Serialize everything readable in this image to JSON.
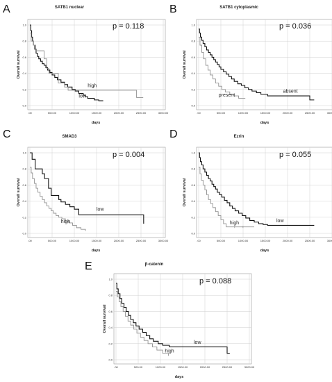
{
  "figure": {
    "panels": [
      {
        "letter": "A",
        "title": "SATB1 nuclear",
        "p_text": "p = 0.118",
        "chart_data": {
          "type": "line",
          "title": "SATB1 nuclear",
          "xlabel": "days",
          "ylabel": "Overall survival",
          "xlim": [
            0,
            3000
          ],
          "ylim": [
            0,
            1.0
          ],
          "xticks": [
            ".00",
            "500.00",
            "1000.00",
            "1500.00",
            "2000.00",
            "2500.00",
            "3000.00"
          ],
          "yticks": [
            "0.0",
            "0.2",
            "0.4",
            "0.6",
            "0.8",
            "1.0"
          ],
          "grid": true,
          "series": [
            {
              "name": "low",
              "color": "#111111",
              "x": [
                0,
                20,
                40,
                60,
                80,
                110,
                140,
                170,
                200,
                240,
                280,
                320,
                360,
                400,
                450,
                500,
                560,
                620,
                700,
                780,
                850,
                950,
                1020,
                1100,
                1200,
                1250,
                1300,
                1400,
                1450,
                1500,
                1550,
                1650
              ],
              "y": [
                1.0,
                0.93,
                0.85,
                0.8,
                0.75,
                0.7,
                0.65,
                0.61,
                0.58,
                0.55,
                0.52,
                0.5,
                0.47,
                0.44,
                0.41,
                0.38,
                0.35,
                0.32,
                0.29,
                0.26,
                0.23,
                0.2,
                0.18,
                0.15,
                0.13,
                0.11,
                0.09,
                0.09,
                0.07,
                0.07,
                0.06,
                0.06
              ]
            },
            {
              "name": "high",
              "color": "#909090",
              "x": [
                0,
                30,
                80,
                130,
                210,
                320,
                380,
                430,
                560,
                640,
                720,
                780,
                860,
                1000,
                2100,
                2400,
                2550
              ],
              "y": [
                0.9,
                0.8,
                0.75,
                0.68,
                0.68,
                0.58,
                0.46,
                0.4,
                0.4,
                0.28,
                0.28,
                0.23,
                0.19,
                0.19,
                0.19,
                0.1,
                0.1
              ]
            }
          ],
          "annotations": [
            {
              "text": "high",
              "x": 1300,
              "y": 0.23
            },
            {
              "text": "low",
              "x": 1100,
              "y": 0.1
            }
          ]
        }
      },
      {
        "letter": "B",
        "title": "SATB1 cytoplasmic",
        "p_text": "p = 0.036",
        "chart_data": {
          "type": "line",
          "title": "SATB1 cytoplasmic",
          "xlabel": "days",
          "ylabel": "Overall survival",
          "xlim": [
            0,
            3000
          ],
          "ylim": [
            0,
            1.0
          ],
          "xticks": [
            ".00",
            "500.00",
            "1000.00",
            "1500.00",
            "2000.00",
            "2500.00",
            "3000.00"
          ],
          "yticks": [
            "0.0",
            "0.2",
            "0.4",
            "0.6",
            "0.8",
            "1.0"
          ],
          "grid": true,
          "series": [
            {
              "name": "absent",
              "color": "#111111",
              "x": [
                0,
                20,
                40,
                70,
                100,
                140,
                180,
                220,
                260,
                300,
                340,
                380,
                420,
                460,
                500,
                560,
                620,
                680,
                740,
                800,
                880,
                960,
                1040,
                1120,
                1200,
                1300,
                1400,
                1550,
                1700,
                2000,
                2300,
                2500,
                2600
              ],
              "y": [
                0.95,
                0.9,
                0.85,
                0.81,
                0.77,
                0.73,
                0.69,
                0.66,
                0.63,
                0.6,
                0.57,
                0.54,
                0.51,
                0.48,
                0.45,
                0.42,
                0.39,
                0.36,
                0.33,
                0.3,
                0.27,
                0.25,
                0.22,
                0.2,
                0.18,
                0.16,
                0.14,
                0.12,
                0.12,
                0.12,
                0.12,
                0.07,
                0.07
              ]
            },
            {
              "name": "present",
              "color": "#909090",
              "x": [
                0,
                30,
                70,
                110,
                160,
                210,
                260,
                320,
                380,
                450,
                520,
                600,
                700,
                800,
                900,
                1050
              ],
              "y": [
                0.85,
                0.75,
                0.66,
                0.58,
                0.5,
                0.44,
                0.38,
                0.33,
                0.28,
                0.24,
                0.2,
                0.17,
                0.14,
                0.12,
                0.09,
                0.09
              ]
            }
          ],
          "annotations": [
            {
              "text": "absent",
              "x": 1900,
              "y": 0.16
            },
            {
              "text": "present",
              "x": 450,
              "y": 0.11
            }
          ]
        }
      },
      {
        "letter": "C",
        "title": "SMAD3",
        "p_text": "p = 0.004",
        "chart_data": {
          "type": "line",
          "title": "SMAD3",
          "xlabel": "days",
          "ylabel": "Overall survival",
          "xlim": [
            0,
            3000
          ],
          "ylim": [
            0,
            1.0
          ],
          "xticks": [
            ".00",
            "500.00",
            "1000.00",
            "1500.00",
            "2000.00",
            "2500.00",
            "3000.00"
          ],
          "yticks": [
            "0.0",
            "0.2",
            "0.4",
            "0.6",
            "0.8",
            "1.0"
          ],
          "grid": true,
          "series": [
            {
              "name": "low",
              "color": "#111111",
              "x": [
                0,
                50,
                120,
                200,
                280,
                330,
                420,
                480,
                560,
                650,
                700,
                800,
                900,
                1000,
                1100,
                2500,
                2560
              ],
              "y": [
                1.0,
                0.92,
                0.8,
                0.8,
                0.74,
                0.68,
                0.56,
                0.47,
                0.47,
                0.42,
                0.39,
                0.36,
                0.33,
                0.3,
                0.23,
                0.23,
                0.12
              ]
            },
            {
              "name": "high",
              "color": "#909090",
              "x": [
                0,
                30,
                60,
                100,
                140,
                180,
                230,
                280,
                330,
                380,
                430,
                480,
                530,
                590,
                650,
                720,
                800,
                880,
                960,
                1050,
                1150,
                1250
              ],
              "y": [
                0.82,
                0.75,
                0.68,
                0.62,
                0.56,
                0.51,
                0.46,
                0.42,
                0.38,
                0.34,
                0.31,
                0.28,
                0.25,
                0.22,
                0.2,
                0.18,
                0.15,
                0.13,
                0.1,
                0.07,
                0.05,
                0.03
              ]
            }
          ],
          "annotations": [
            {
              "text": "low",
              "x": 1500,
              "y": 0.28
            },
            {
              "text": "high",
              "x": 700,
              "y": 0.13
            }
          ]
        }
      },
      {
        "letter": "D",
        "title": "Ezrin",
        "p_text": "p = 0.055",
        "chart_data": {
          "type": "line",
          "title": "Ezrin",
          "xlabel": "days",
          "ylabel": "Overall survival",
          "xlim": [
            0,
            3000
          ],
          "ylim": [
            0,
            1.0
          ],
          "xticks": [
            ".00",
            "500.00",
            "1000.00",
            "1500.00",
            "2000.00",
            "2500.00",
            "3000.00"
          ],
          "yticks": [
            "0.0",
            "0.2",
            "0.4",
            "0.6",
            "0.8",
            "1.0"
          ],
          "grid": true,
          "series": [
            {
              "name": "low",
              "color": "#111111",
              "x": [
                0,
                20,
                40,
                70,
                100,
                140,
                180,
                220,
                260,
                300,
                340,
                380,
                420,
                470,
                520,
                580,
                640,
                700,
                760,
                820,
                900,
                980,
                1060,
                1150,
                1250,
                1350,
                1450,
                1550,
                2000,
                2500,
                2600
              ],
              "y": [
                1.0,
                0.94,
                0.89,
                0.85,
                0.8,
                0.76,
                0.72,
                0.68,
                0.65,
                0.61,
                0.58,
                0.55,
                0.51,
                0.48,
                0.45,
                0.41,
                0.38,
                0.34,
                0.31,
                0.28,
                0.25,
                0.22,
                0.19,
                0.16,
                0.14,
                0.12,
                0.11,
                0.1,
                0.1,
                0.1,
                0.1
              ]
            },
            {
              "name": "high",
              "color": "#909090",
              "x": [
                0,
                30,
                60,
                100,
                140,
                180,
                220,
                270,
                320,
                380,
                440,
                500,
                560,
                620,
                1250
              ],
              "y": [
                0.82,
                0.74,
                0.66,
                0.6,
                0.54,
                0.48,
                0.42,
                0.37,
                0.32,
                0.27,
                0.22,
                0.17,
                0.12,
                0.08,
                0.08
              ]
            }
          ],
          "annotations": [
            {
              "text": "low",
              "x": 1750,
              "y": 0.14
            },
            {
              "text": "high",
              "x": 700,
              "y": 0.11
            }
          ]
        }
      },
      {
        "letter": "E",
        "title": "β-catenin",
        "p_text": "p = 0.088",
        "chart_data": {
          "type": "line",
          "title": "β-catenin",
          "xlabel": "days",
          "ylabel": "Overall survival",
          "xlim": [
            0,
            3000
          ],
          "ylim": [
            0,
            1.0
          ],
          "xticks": [
            ".00",
            "500.00",
            "1000.00",
            "1500.00",
            "2000.00",
            "2500.00",
            "3000.00"
          ],
          "yticks": [
            "0.0",
            "0.2",
            "0.4",
            "0.6",
            "0.8",
            "1.0"
          ],
          "grid": true,
          "series": [
            {
              "name": "low",
              "color": "#111111",
              "x": [
                0,
                20,
                50,
                90,
                130,
                180,
                230,
                280,
                330,
                390,
                450,
                520,
                600,
                680,
                760,
                840,
                950,
                1050,
                1200,
                1400,
                2500,
                2560
              ],
              "y": [
                0.95,
                0.88,
                0.82,
                0.76,
                0.7,
                0.65,
                0.6,
                0.55,
                0.5,
                0.46,
                0.42,
                0.38,
                0.34,
                0.3,
                0.26,
                0.23,
                0.2,
                0.18,
                0.16,
                0.16,
                0.08,
                0.08
              ]
            },
            {
              "name": "high",
              "color": "#909090",
              "x": [
                0,
                30,
                70,
                110,
                160,
                210,
                270,
                330,
                400,
                470,
                550,
                630,
                720,
                820,
                920,
                1050,
                1180
              ],
              "y": [
                0.85,
                0.78,
                0.72,
                0.66,
                0.6,
                0.54,
                0.48,
                0.43,
                0.38,
                0.33,
                0.28,
                0.24,
                0.2,
                0.16,
                0.12,
                0.08,
                0.05
              ]
            }
          ],
          "annotations": [
            {
              "text": "low",
              "x": 1750,
              "y": 0.2
            },
            {
              "text": "high",
              "x": 1100,
              "y": 0.09
            }
          ]
        }
      }
    ]
  }
}
